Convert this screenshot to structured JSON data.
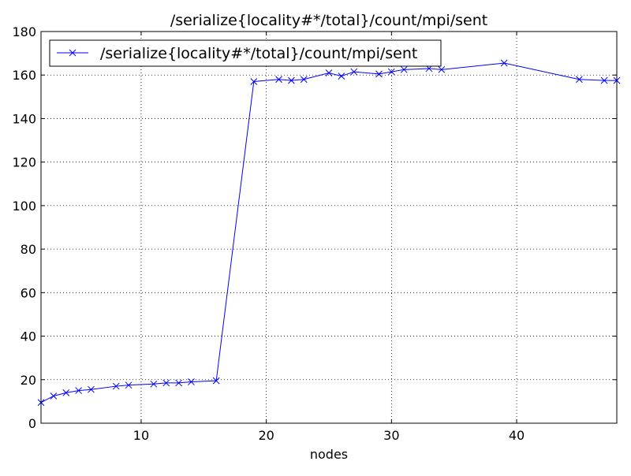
{
  "chart_data": {
    "type": "line",
    "title": "/serialize{locality#*/total}/count/mpi/sent",
    "xlabel": "nodes",
    "ylabel": "",
    "xlim": [
      2,
      48
    ],
    "ylim": [
      0,
      180
    ],
    "xticks": [
      10,
      20,
      30,
      40
    ],
    "yticks": [
      0,
      20,
      40,
      60,
      80,
      100,
      120,
      140,
      160,
      180
    ],
    "grid": true,
    "legend_position": "top-left",
    "series": [
      {
        "name": "/serialize{locality#*/total}/count/mpi/sent",
        "color": "#0000ff",
        "marker": "x",
        "x": [
          2,
          3,
          4,
          5,
          6,
          8,
          9,
          11,
          12,
          13,
          14,
          16,
          19,
          21,
          22,
          23,
          25,
          26,
          27,
          29,
          30,
          31,
          33,
          34,
          39,
          45,
          47,
          48
        ],
        "y": [
          9.5,
          12.5,
          14,
          15,
          15.5,
          17,
          17.5,
          18,
          18.5,
          18.5,
          19,
          19.5,
          157,
          158,
          157.5,
          158,
          161,
          159.5,
          161.5,
          160.5,
          161.5,
          162.5,
          163,
          162.5,
          165.5,
          158,
          157.5,
          157.5
        ]
      }
    ]
  }
}
